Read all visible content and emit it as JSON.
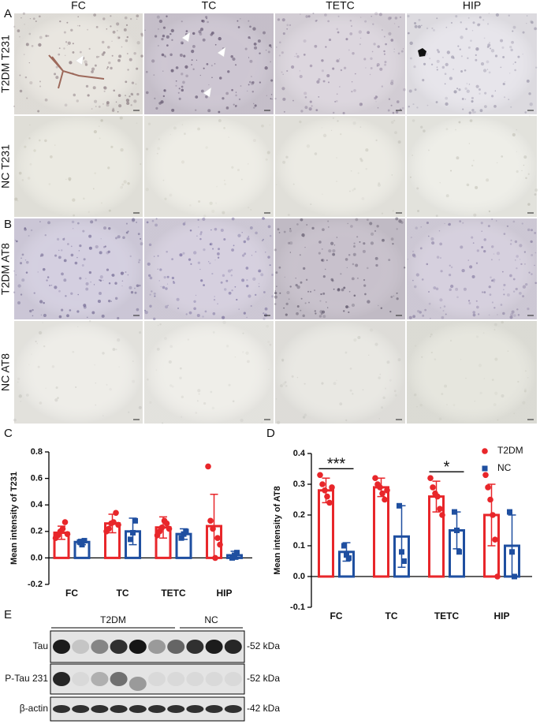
{
  "figure": {
    "column_headers": [
      "FC",
      "TC",
      "TETC",
      "HIP"
    ],
    "panel_labels": [
      "A",
      "B",
      "C",
      "D",
      "E"
    ],
    "row_labels": [
      "T2DM T231",
      "NC T231",
      "T2DM AT8",
      "NC AT8"
    ]
  },
  "chart_data": [
    {
      "type": "bar",
      "y_label": "Mean intensity of T231",
      "categories": [
        "FC",
        "TC",
        "TETC",
        "HIP"
      ],
      "series": [
        {
          "color": "#e8262a",
          "marker": "circle",
          "values": [
            0.19,
            0.26,
            0.23,
            0.24
          ],
          "errors": [
            0.05,
            0.07,
            0.08,
            0.24
          ],
          "points": [
            [
              0.15,
              0.17,
              0.2,
              0.22,
              0.27,
              0.18
            ],
            [
              0.2,
              0.22,
              0.26,
              0.27,
              0.34,
              0.25
            ],
            [
              0.17,
              0.2,
              0.23,
              0.28,
              0.26,
              0.22
            ],
            [
              0.69,
              0.28,
              0.22,
              0.0,
              0.15,
              0.1
            ]
          ]
        },
        {
          "color": "#1f4fa0",
          "marker": "square",
          "values": [
            0.12,
            0.2,
            0.18,
            0.02
          ],
          "errors": [
            0.02,
            0.1,
            0.04,
            0.03
          ],
          "points": [
            [
              0.12,
              0.1,
              0.13
            ],
            [
              0.14,
              0.19,
              0.28
            ],
            [
              0.15,
              0.18,
              0.2
            ],
            [
              0.0,
              0.02,
              0.04
            ]
          ]
        }
      ],
      "ylim": [
        -0.2,
        0.8
      ],
      "yticks": [
        -0.2,
        {
          "value": 0,
          "label": "0.0"
        },
        0.2,
        0.4,
        0.6,
        0.8
      ],
      "legend": false
    },
    {
      "type": "bar",
      "y_label": "Mean intensity of AT8",
      "categories": [
        "FC",
        "TC",
        "TETC",
        "HIP"
      ],
      "series": [
        {
          "name": "T2DM",
          "color": "#e8262a",
          "marker": "circle",
          "values": [
            0.28,
            0.29,
            0.26,
            0.2
          ],
          "errors": [
            0.04,
            0.03,
            0.05,
            0.1
          ],
          "points": [
            [
              0.33,
              0.3,
              0.28,
              0.26,
              0.24,
              0.29
            ],
            [
              0.32,
              0.3,
              0.29,
              0.27,
              0.25,
              0.28
            ],
            [
              0.32,
              0.29,
              0.27,
              0.26,
              0.22,
              0.2
            ],
            [
              0.33,
              0.29,
              0.25,
              0.2,
              0.12,
              0.0
            ]
          ]
        },
        {
          "name": "NC",
          "color": "#1f4fa0",
          "marker": "square",
          "values": [
            0.08,
            0.13,
            0.15,
            0.1
          ],
          "errors": [
            0.03,
            0.1,
            0.06,
            0.1
          ],
          "points": [
            [
              0.1,
              0.07,
              0.06
            ],
            [
              0.23,
              0.08,
              0.05
            ],
            [
              0.21,
              0.15,
              0.08
            ],
            [
              0.21,
              0.08,
              0.0
            ]
          ]
        }
      ],
      "ylim": [
        -0.1,
        0.4
      ],
      "yticks": [
        -0.1,
        {
          "value": 0,
          "label": "0.0"
        },
        0.1,
        0.2,
        0.3,
        0.4
      ],
      "legend": "upper right",
      "annotations": [
        {
          "text": "***",
          "category": "FC"
        },
        {
          "text": "*",
          "category": "TETC"
        }
      ]
    }
  ],
  "blot": {
    "groups": [
      "T2DM",
      "NC"
    ],
    "rows": [
      {
        "label": "Tau",
        "marker": "-52 kDa"
      },
      {
        "label": "P-Tau 231",
        "marker": "-52 kDa"
      },
      {
        "label": "β-actin",
        "marker": "-42 kDa"
      }
    ]
  }
}
